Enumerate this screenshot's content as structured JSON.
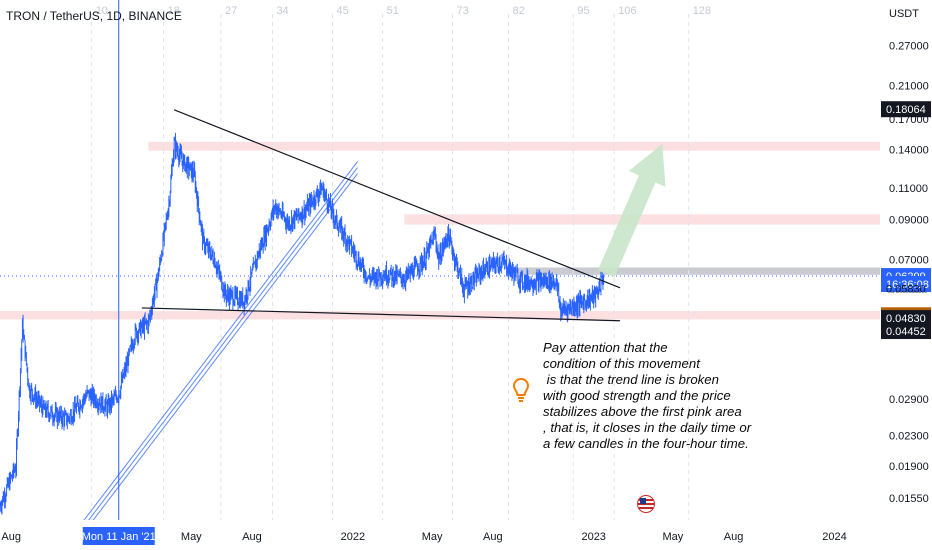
{
  "header": {
    "symbol": "TRON / TetherUS, 1D, BINANCE"
  },
  "colors": {
    "candle": "#2962ff",
    "pink_zone": "#fcd9dc",
    "gray_zone": "#c9cbd1",
    "trendline": "#131722",
    "channel": "#2962ff",
    "arrow": "#c8e6c9",
    "price_label": "#2962ff",
    "orange_label": "#b45f06",
    "dark_label": "#131722"
  },
  "chart_data": {
    "type": "candlestick",
    "y_scale": "log",
    "ylim": [
      0.0135,
      0.36
    ],
    "currency_label": "USDT",
    "y_ticks": [
      "0.27000",
      "0.21000",
      "0.17000",
      "0.14000",
      "0.11000",
      "0.09000",
      "0.07000",
      "0.05830",
      "0.04830",
      "0.02900",
      "0.02300",
      "0.01900",
      "0.01550"
    ],
    "x_ticks": [
      "Aug",
      "Mon 11 Jan '21",
      "May",
      "Aug",
      "2022",
      "May",
      "Aug",
      "2023",
      "May",
      "Aug",
      "2024"
    ],
    "x_range": [
      "2020-07-15",
      "2024-03-10"
    ],
    "crosshair_date": "2021-01-11",
    "bar_count_numbers": [
      "10",
      "18",
      "27",
      "34",
      "45",
      "51",
      "73",
      "82",
      "95",
      "106",
      "128"
    ],
    "price_labels": [
      {
        "text": "0.18064",
        "value": 0.18064,
        "style": "dark"
      },
      {
        "text": "0.06299",
        "value": 0.06299,
        "style": "blue"
      },
      {
        "text": "16:36:08",
        "value": 0.0599,
        "style": "blue"
      },
      {
        "text": "0.05830",
        "value": 0.0583,
        "style": "plain"
      },
      {
        "text": "0.04917",
        "value": 0.04917,
        "style": "orange"
      },
      {
        "text": "0.04830",
        "value": 0.0483,
        "style": "dark"
      },
      {
        "text": "0.04452",
        "value": 0.04452,
        "style": "dark"
      }
    ],
    "last_price": 0.06299,
    "price_path": [
      [
        "2020-07-15",
        0.0148
      ],
      [
        "2020-08-08",
        0.019
      ],
      [
        "2020-08-18",
        0.046
      ],
      [
        "2020-08-28",
        0.031
      ],
      [
        "2020-09-20",
        0.027
      ],
      [
        "2020-10-25",
        0.0255
      ],
      [
        "2020-11-25",
        0.03
      ],
      [
        "2020-12-25",
        0.0275
      ],
      [
        "2021-01-11",
        0.03
      ],
      [
        "2021-02-05",
        0.044
      ],
      [
        "2021-02-25",
        0.047
      ],
      [
        "2021-03-12",
        0.064
      ],
      [
        "2021-03-28",
        0.1
      ],
      [
        "2021-04-05",
        0.145
      ],
      [
        "2021-04-18",
        0.13
      ],
      [
        "2021-05-05",
        0.12
      ],
      [
        "2021-05-19",
        0.078
      ],
      [
        "2021-06-05",
        0.07
      ],
      [
        "2021-06-22",
        0.056
      ],
      [
        "2021-07-20",
        0.054
      ],
      [
        "2021-08-10",
        0.072
      ],
      [
        "2021-09-05",
        0.098
      ],
      [
        "2021-09-25",
        0.088
      ],
      [
        "2021-10-20",
        0.095
      ],
      [
        "2021-11-15",
        0.11
      ],
      [
        "2021-12-05",
        0.09
      ],
      [
        "2021-12-25",
        0.078
      ],
      [
        "2022-01-25",
        0.062
      ],
      [
        "2022-02-20",
        0.064
      ],
      [
        "2022-03-20",
        0.062
      ],
      [
        "2022-04-20",
        0.07
      ],
      [
        "2022-05-05",
        0.082
      ],
      [
        "2022-05-11",
        0.07
      ],
      [
        "2022-05-25",
        0.082
      ],
      [
        "2022-06-18",
        0.058
      ],
      [
        "2022-07-20",
        0.066
      ],
      [
        "2022-08-15",
        0.069
      ],
      [
        "2022-09-15",
        0.061
      ],
      [
        "2022-10-15",
        0.061
      ],
      [
        "2022-11-05",
        0.061
      ],
      [
        "2022-11-12",
        0.0505
      ],
      [
        "2022-12-10",
        0.053
      ],
      [
        "2022-12-25",
        0.0545
      ],
      [
        "2023-01-05",
        0.056
      ],
      [
        "2023-01-14",
        0.062
      ],
      [
        "2023-01-16",
        0.063
      ]
    ],
    "annotations": {
      "pink_zones": [
        {
          "from": 0.139,
          "to": 0.147,
          "x_from": "2021-02-25",
          "x_to": "end"
        },
        {
          "from": 0.0872,
          "to": 0.093,
          "x_from": "2022-03-20",
          "x_to": "end"
        },
        {
          "from": 0.0479,
          "to": 0.0505,
          "x_from": "start",
          "x_to": "end"
        }
      ],
      "gray_zone": {
        "from": 0.0635,
        "to": 0.0665,
        "x_from": "2022-08-25",
        "x_to": "end"
      },
      "descending_trendline": [
        [
          "2021-04-05",
          0.18
        ],
        [
          "2023-02-10",
          0.0585
        ]
      ],
      "support_line": [
        [
          "2021-02-15",
          0.0515
        ],
        [
          "2023-02-10",
          0.0475
        ]
      ],
      "channel": [
        [
          "2020-10-20",
          0.011
        ],
        [
          "2022-01-08",
          0.125
        ]
      ],
      "projection_arrow": [
        [
          "2023-01-20",
          0.064
        ],
        [
          "2023-04-15",
          0.145
        ]
      ]
    }
  },
  "note": {
    "lines": [
      "Pay attention that the",
      "condition of this movement",
      " is that the trend line is broken",
      "with good strength and the price",
      "stabilizes above the first pink area",
      ", that is, it closes in the daily time or",
      "a few candles in the four-hour time."
    ]
  }
}
